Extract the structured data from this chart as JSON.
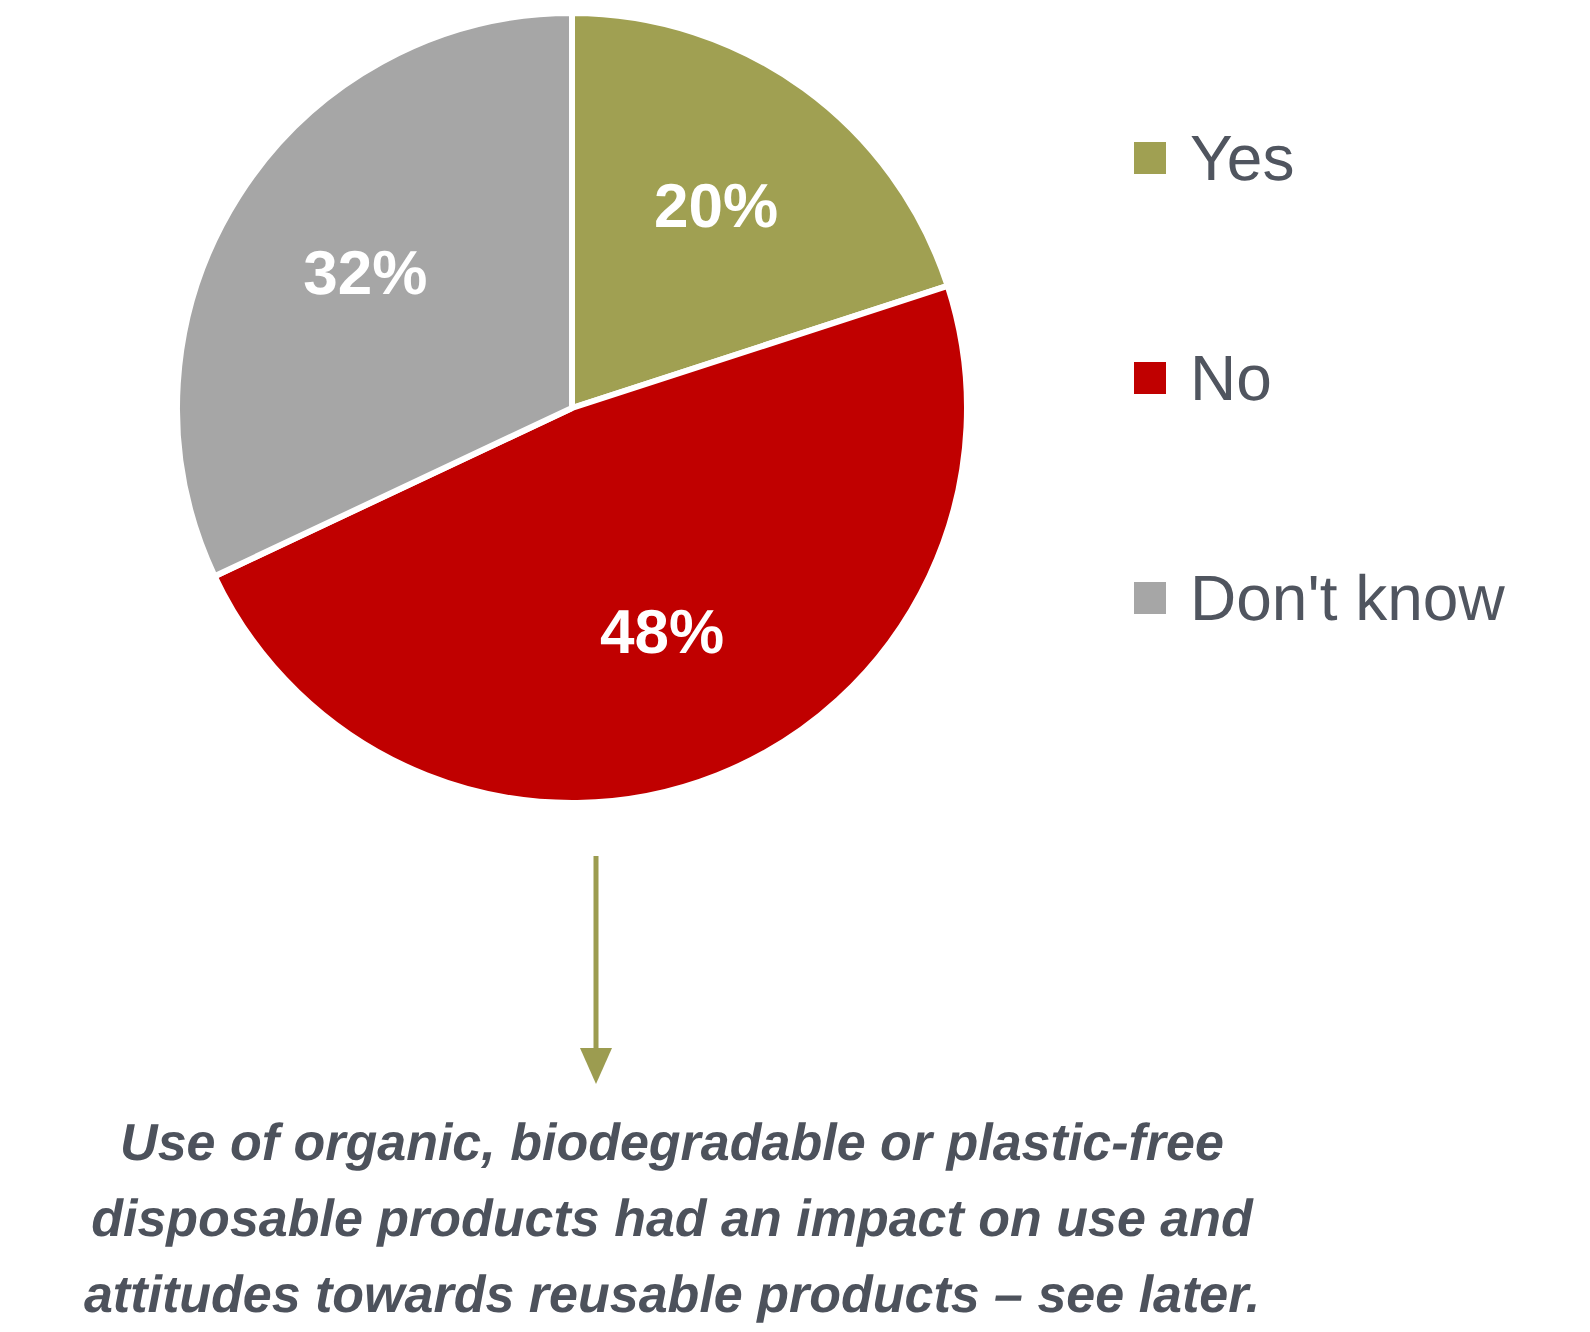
{
  "chart_data": {
    "type": "pie",
    "categories": [
      "Yes",
      "No",
      "Don't know"
    ],
    "values": [
      20,
      48,
      32
    ],
    "colors": [
      "#a0a052",
      "#c00000",
      "#a6a6a6"
    ],
    "value_labels": [
      "20%",
      "48%",
      "32%"
    ],
    "legend": "right",
    "annotations": [
      "Use of organic, biodegradable or plastic-free disposable products had an impact on use and attitudes towards reusable products – see later."
    ]
  }
}
